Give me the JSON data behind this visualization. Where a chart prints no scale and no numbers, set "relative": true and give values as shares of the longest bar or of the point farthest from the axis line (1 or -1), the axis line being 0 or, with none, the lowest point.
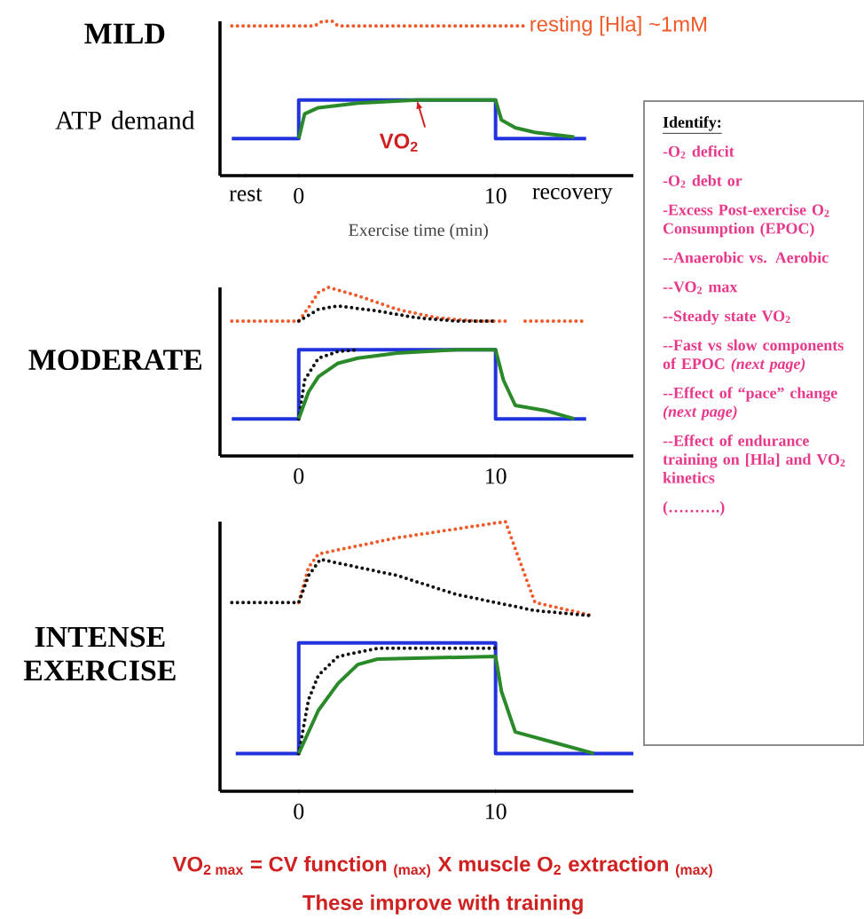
{
  "chart_data": [
    {
      "type": "line",
      "title": "MILD",
      "ylabel": "ATP demand",
      "xlabel": "Exercise time (min)",
      "relative": true,
      "xlim": [
        -4,
        17
      ],
      "xticks": [
        {
          "value": -2.7,
          "label": "rest"
        },
        0,
        10,
        {
          "value": 13.9,
          "label": "recovery"
        }
      ],
      "annotations": [
        {
          "text": "VO$_{2}$",
          "x": 6,
          "y": 0.49
        }
      ],
      "series": [
        {
          "name": "resting [Hla] ~1mM",
          "color": "#f05a28",
          "line_style": "dotted",
          "x": [
            -3.4,
            0.8,
            1.2,
            1.7,
            2,
            11.4
          ],
          "values": [
            0.97,
            0.97,
            1.0,
            1.0,
            0.97,
            0.97
          ]
        },
        {
          "color": "#2233dd",
          "line_style": "solid",
          "x": [
            -3.4,
            0,
            0,
            10,
            10,
            14.6
          ],
          "values": [
            0.24,
            0.24,
            0.49,
            0.49,
            0.24,
            0.24
          ]
        },
        {
          "color": "#2a8a2a",
          "line_style": "solid",
          "x": [
            0,
            0.3,
            1,
            3,
            6,
            10,
            10.3,
            11,
            12,
            14
          ],
          "values": [
            0.24,
            0.4,
            0.44,
            0.47,
            0.49,
            0.49,
            0.36,
            0.31,
            0.28,
            0.25
          ]
        }
      ]
    },
    {
      "type": "line",
      "title": "MODERATE",
      "relative": true,
      "xlim": [
        -4,
        17
      ],
      "xticks": [
        0,
        10
      ],
      "series": [
        {
          "color": "#f05a28",
          "line_style": "dotted",
          "x": [
            -3.4,
            0,
            0.5,
            1,
            1.5,
            3,
            5,
            7,
            9,
            10.7,
            11.1,
            11.5,
            14.6
          ],
          "values": [
            0.8,
            0.8,
            0.88,
            0.97,
            1.0,
            0.95,
            0.87,
            0.82,
            0.8,
            0.8,
            null,
            0.8,
            0.8
          ]
        },
        {
          "color": "#111111",
          "line_style": "dotted",
          "x": [
            0,
            1,
            2,
            4,
            6,
            8,
            10
          ],
          "values": [
            0.8,
            0.87,
            0.89,
            0.86,
            0.82,
            0.8,
            0.8
          ]
        },
        {
          "color": "#2233dd",
          "line_style": "solid",
          "x": [
            -3.4,
            0,
            0,
            10,
            10,
            14.6
          ],
          "values": [
            0.22,
            0.22,
            0.63,
            0.63,
            0.22,
            0.22
          ]
        },
        {
          "color": "#111111",
          "line_style": "dotted",
          "x": [
            0,
            0.3,
            1,
            2,
            3
          ],
          "values": [
            0.22,
            0.45,
            0.58,
            0.62,
            0.63
          ]
        },
        {
          "color": "#2a8a2a",
          "line_style": "solid",
          "x": [
            0,
            0.5,
            1,
            2,
            3,
            5,
            8,
            10,
            10.4,
            11,
            12.5,
            14
          ],
          "values": [
            0.22,
            0.38,
            0.47,
            0.55,
            0.58,
            0.61,
            0.63,
            0.63,
            0.45,
            0.3,
            0.27,
            0.22
          ]
        }
      ]
    },
    {
      "type": "line",
      "title": "INTENSE EXERCISE",
      "relative": true,
      "xlim": [
        -4,
        17
      ],
      "xticks": [
        0,
        10
      ],
      "annotations": [
        "VO$_{2 max}$ = CV function $_{(max)}$ X muscle O$_{2}$ extraction $_{(max)}$",
        "These improve with training"
      ],
      "series": [
        {
          "color": "#f05a28",
          "line_style": "dotted",
          "x": [
            0,
            0.5,
            1,
            5,
            10.5,
            11,
            12,
            15
          ],
          "values": [
            0.7,
            0.83,
            0.88,
            0.94,
            1.0,
            0.9,
            0.7,
            0.65
          ]
        },
        {
          "color": "#111111",
          "line_style": "dotted",
          "x": [
            -3.4,
            0,
            0.5,
            1.1,
            5,
            8,
            10,
            12,
            15
          ],
          "values": [
            0.7,
            0.7,
            0.8,
            0.86,
            0.8,
            0.73,
            0.7,
            0.67,
            0.65
          ]
        },
        {
          "color": "#2233dd",
          "line_style": "solid",
          "x": [
            -3.2,
            0,
            0,
            10,
            10,
            17
          ],
          "values": [
            0.14,
            0.14,
            0.55,
            0.55,
            0.14,
            0.14
          ]
        },
        {
          "color": "#111111",
          "line_style": "dotted",
          "x": [
            0,
            0.5,
            1,
            2,
            4,
            10
          ],
          "values": [
            0.14,
            0.34,
            0.43,
            0.5,
            0.53,
            0.53
          ]
        },
        {
          "color": "#2a8a2a",
          "line_style": "solid",
          "x": [
            0,
            1,
            2,
            3,
            4,
            10,
            10.3,
            11,
            13,
            15
          ],
          "values": [
            0.14,
            0.3,
            0.4,
            0.47,
            0.49,
            0.5,
            0.37,
            0.22,
            0.18,
            0.14
          ]
        }
      ]
    },
    {
      "type": "other",
      "title": "Identify:",
      "annotations": [
        "-O$_{2}$ deficit",
        "-O$_{2}$ debt or",
        "-Excess Post-exercise O$_{2}$ Consumption (EPOC)",
        "--Anaerobic vs. Aerobic",
        "--VO$_{2}$ max",
        "--Steady state VO$_{2}$",
        "--Fast vs slow components of EPOC *(next page)*",
        "--Effect of “pace” change *(next page)*",
        "--Effect of endurance training on [Hla] and VO$_{2}$ kinetics",
        "(……….)"
      ]
    }
  ]
}
